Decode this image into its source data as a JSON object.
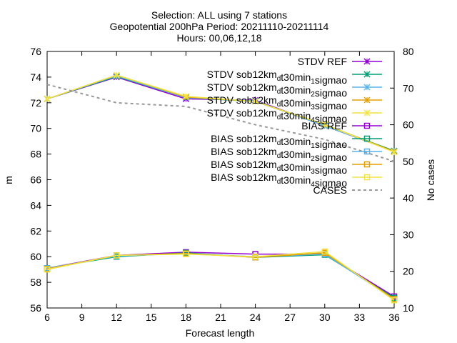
{
  "chart_data": {
    "type": "line",
    "title_lines": [
      "Selection: ALL using     7 stations",
      "Geopotential 200hPa   Period: 20211110-20211114",
      "Hours: 00,06,12,18"
    ],
    "xlabel": "Forecast length",
    "ylabel": "m",
    "y2label": "No cases",
    "x": [
      6,
      12,
      18,
      24,
      30,
      36
    ],
    "xlim": [
      6,
      36
    ],
    "xticks": [
      6,
      9,
      12,
      15,
      18,
      21,
      24,
      27,
      30,
      33,
      36
    ],
    "ylim": [
      56,
      76
    ],
    "yticks": [
      56,
      58,
      60,
      62,
      64,
      66,
      68,
      70,
      72,
      74,
      76
    ],
    "y2lim": [
      10,
      80
    ],
    "y2ticks": [
      10,
      20,
      30,
      40,
      50,
      60,
      70,
      80
    ],
    "legend_position": "top-right",
    "grid": false,
    "series": [
      {
        "label": "STDV REF",
        "base": "STDV sob12km",
        "sub1": "",
        "mid": "",
        "sub2": "",
        "tail": "",
        "color": "#9400d3",
        "marker": "x",
        "axis": "y",
        "values": [
          72.3,
          74.0,
          72.3,
          72.2,
          70.2,
          68.2
        ],
        "legendText": "STDV REF"
      },
      {
        "label": "STDV sob12kmdt30min1sigmao",
        "base": "STDV sob12km",
        "sub1": "d",
        "mid": "t30min",
        "sub2": "1",
        "tail": "sigmao",
        "color": "#009e73",
        "marker": "x",
        "axis": "y",
        "values": [
          72.3,
          74.05,
          72.4,
          72.1,
          70.25,
          68.25
        ]
      },
      {
        "label": "STDV sob12kmdt30min2sigmao",
        "base": "STDV sob12km",
        "sub1": "d",
        "mid": "t30min",
        "sub2": "2",
        "tail": "sigmao",
        "color": "#56b4e9",
        "marker": "x",
        "axis": "y",
        "values": [
          72.3,
          74.1,
          72.4,
          72.15,
          70.2,
          68.2
        ]
      },
      {
        "label": "STDV sob12kmdt30min3sigmao",
        "base": "STDV sob12km",
        "sub1": "d",
        "mid": "t30min",
        "sub2": "3",
        "tail": "sigmao",
        "color": "#e69f00",
        "marker": "x",
        "axis": "y",
        "values": [
          72.3,
          74.15,
          72.45,
          72.1,
          70.3,
          68.2
        ]
      },
      {
        "label": "STDV sob12kmdt30min4sigmao",
        "base": "STDV sob12km",
        "sub1": "d",
        "mid": "t30min",
        "sub2": "4",
        "tail": "sigmao",
        "color": "#f0e442",
        "marker": "x",
        "axis": "y",
        "values": [
          72.3,
          74.15,
          72.5,
          72.1,
          70.3,
          68.15
        ]
      },
      {
        "label": "BIAS REF",
        "color": "#9400d3",
        "marker": "square",
        "axis": "y",
        "values": [
          59.1,
          60.1,
          60.35,
          60.2,
          60.2,
          56.9
        ],
        "legendText": "BIAS REF"
      },
      {
        "label": "BIAS sob12kmdt30min1sigmao",
        "base": "BIAS sob12km",
        "sub1": "d",
        "mid": "t30min",
        "sub2": "1",
        "tail": "sigmao",
        "color": "#009e73",
        "marker": "square",
        "axis": "y",
        "values": [
          59.1,
          60.0,
          60.3,
          59.95,
          60.15,
          56.8
        ]
      },
      {
        "label": "BIAS sob12kmdt30min2sigmao",
        "base": "BIAS sob12km",
        "sub1": "d",
        "mid": "t30min",
        "sub2": "2",
        "tail": "sigmao",
        "color": "#56b4e9",
        "marker": "square",
        "axis": "y",
        "values": [
          59.1,
          60.05,
          60.25,
          60.0,
          60.2,
          56.7
        ]
      },
      {
        "label": "BIAS sob12kmdt30min3sigmao",
        "base": "BIAS sob12km",
        "sub1": "d",
        "mid": "t30min",
        "sub2": "3",
        "tail": "sigmao",
        "color": "#e69f00",
        "marker": "square",
        "axis": "y",
        "values": [
          59.05,
          60.1,
          60.25,
          59.95,
          60.3,
          56.7
        ]
      },
      {
        "label": "BIAS sob12kmdt30min4sigmao",
        "base": "BIAS sob12km",
        "sub1": "d",
        "mid": "t30min",
        "sub2": "4",
        "tail": "sigmao",
        "color": "#f0e442",
        "marker": "square",
        "axis": "y",
        "values": [
          59.0,
          60.1,
          60.2,
          60.0,
          60.4,
          56.6
        ]
      },
      {
        "label": "CASES",
        "color": "#999999",
        "marker": "none",
        "dashed": true,
        "axis": "y2",
        "values": [
          71,
          66,
          65,
          60,
          56,
          50
        ],
        "legendText": "CASES"
      }
    ]
  }
}
